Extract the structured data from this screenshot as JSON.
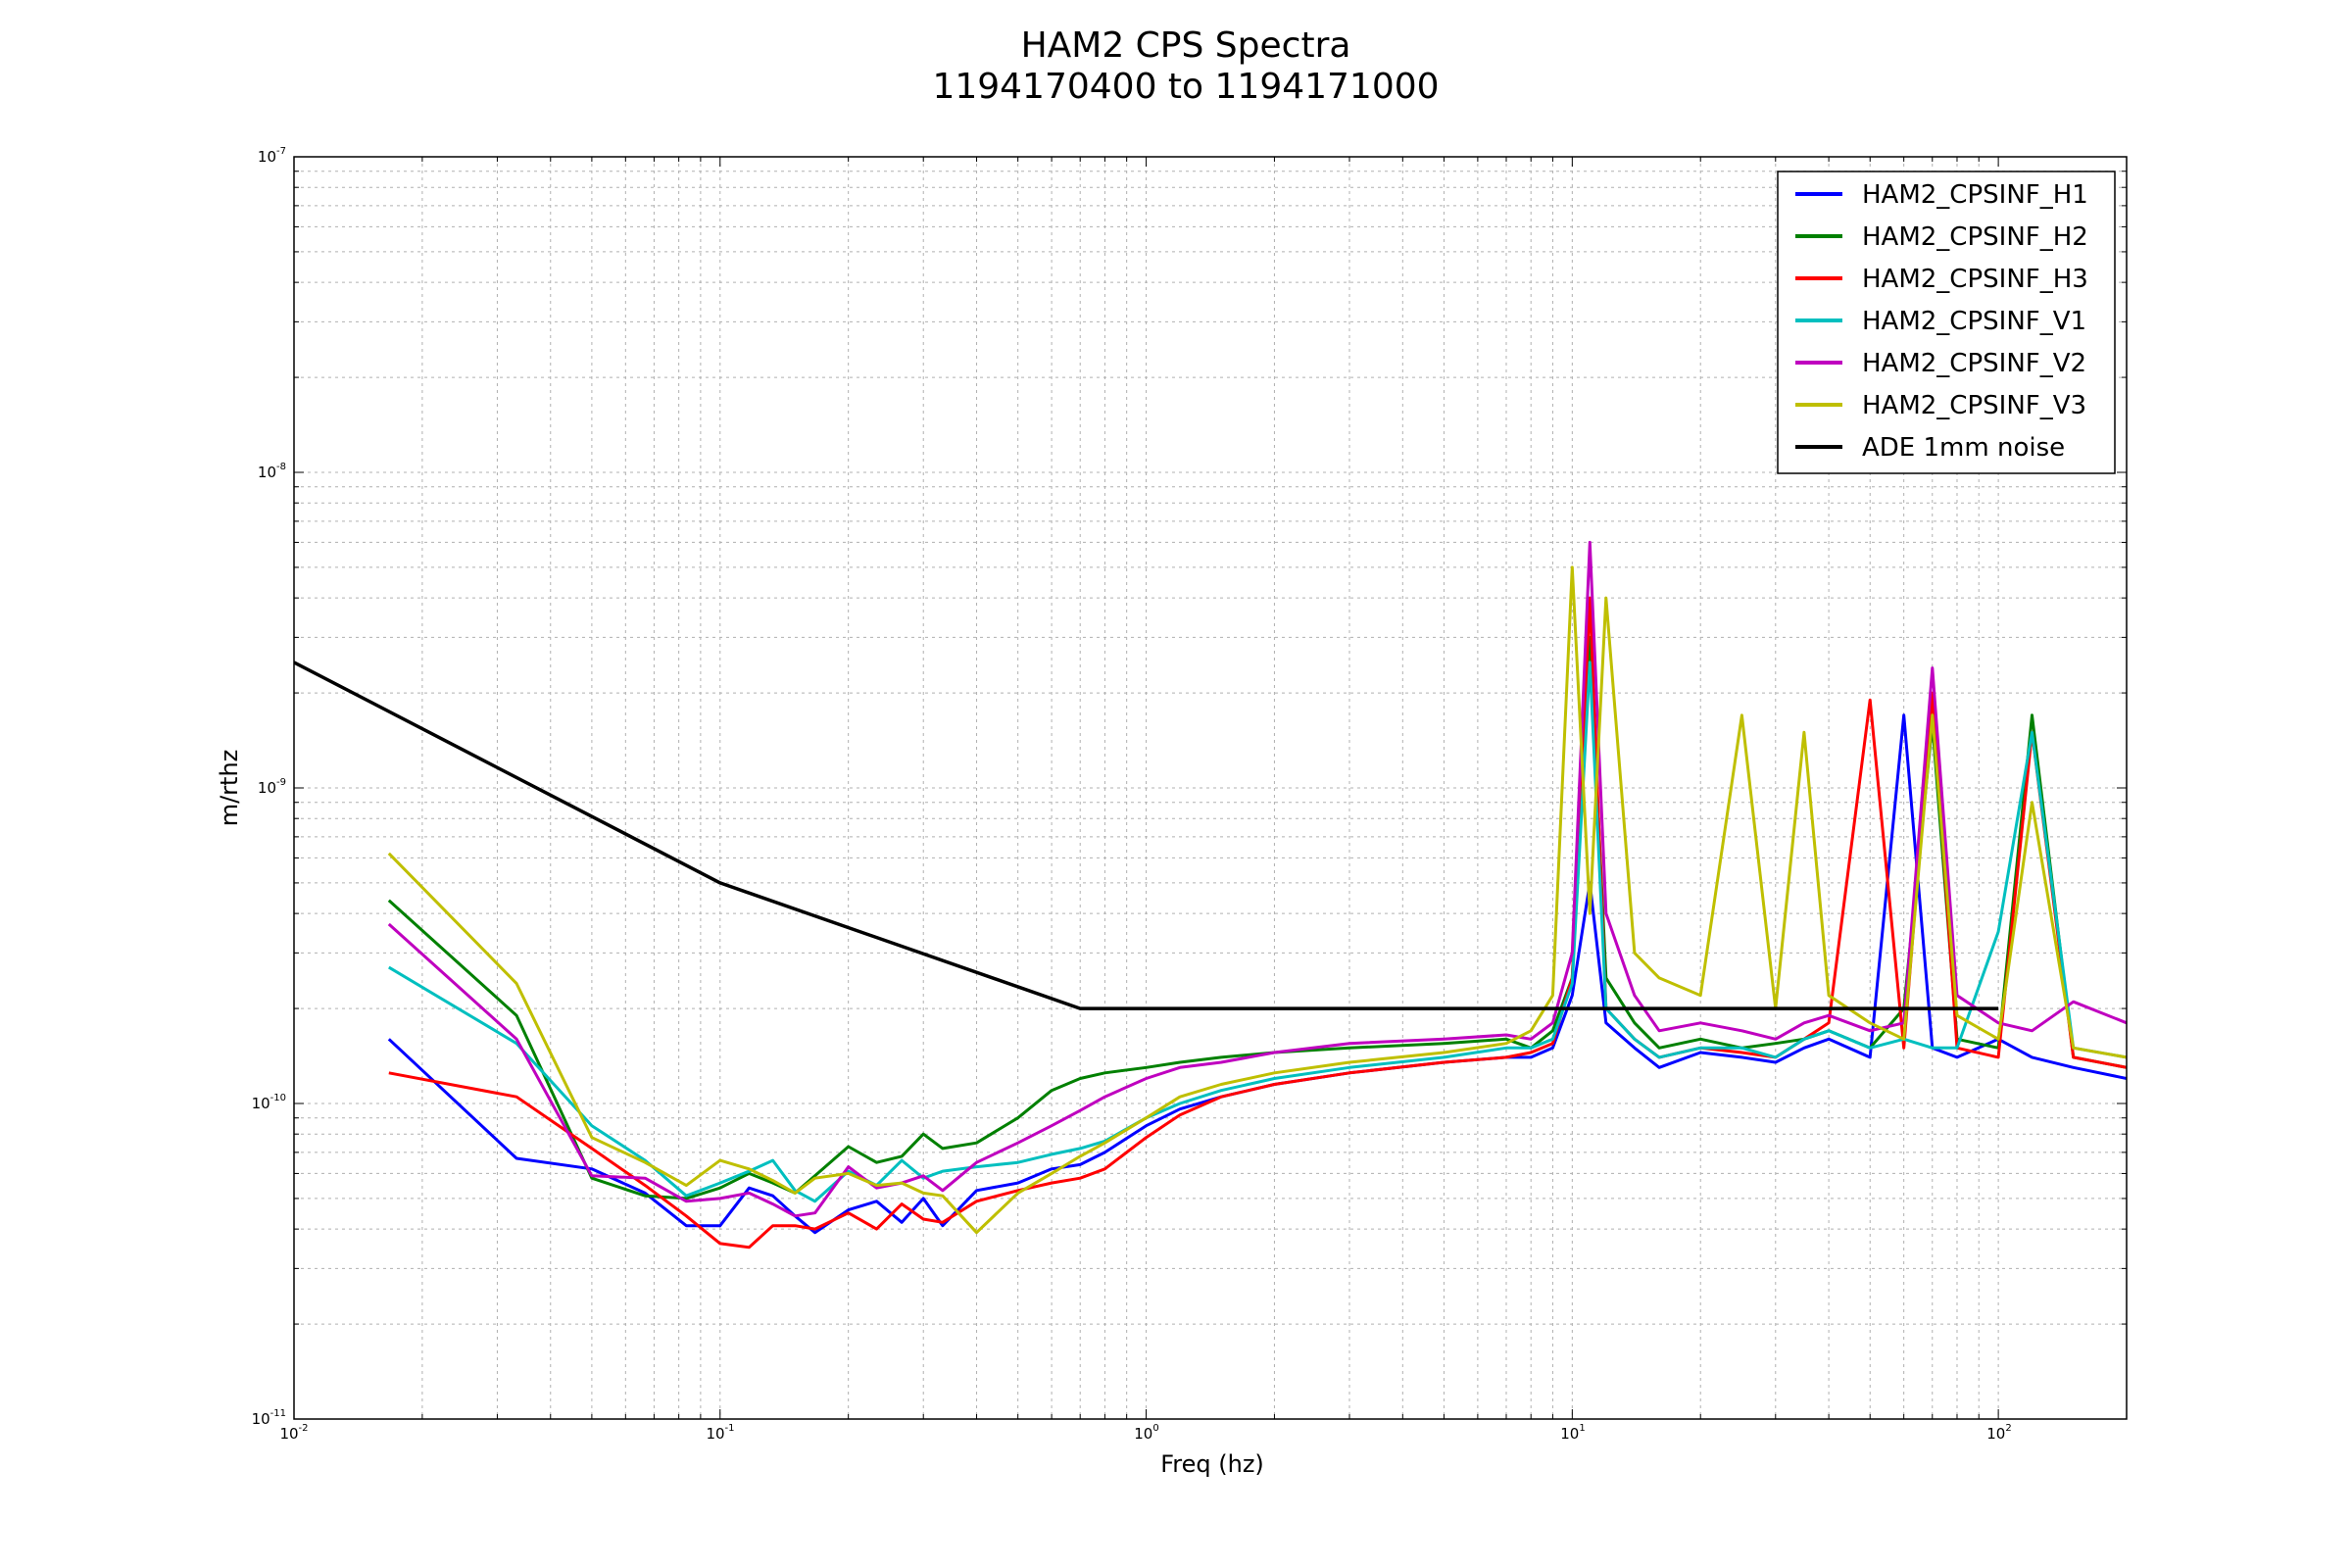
{
  "chart_data": {
    "type": "line",
    "title": [
      "HAM2 CPS Spectra",
      "1194170400 to 1194171000"
    ],
    "xlabel": "Freq (hz)",
    "ylabel": "m/rthz",
    "xscale": "log",
    "yscale": "log",
    "xlim": [
      0.01,
      200
    ],
    "ylim": [
      1e-11,
      1e-07
    ],
    "grid": true,
    "legend_position": "top-right",
    "x_ticks": [
      {
        "base": "10",
        "exp": "-2"
      },
      {
        "base": "10",
        "exp": "-1"
      },
      {
        "base": "10",
        "exp": "0"
      },
      {
        "base": "10",
        "exp": "1"
      },
      {
        "base": "10",
        "exp": "2"
      }
    ],
    "y_ticks": [
      {
        "base": "10",
        "exp": "-11"
      },
      {
        "base": "10",
        "exp": "-10"
      },
      {
        "base": "10",
        "exp": "-9"
      },
      {
        "base": "10",
        "exp": "-8"
      },
      {
        "base": "10",
        "exp": "-7"
      }
    ],
    "series": [
      {
        "name": "HAM2_CPSINF_H1",
        "color": "#0000ff",
        "x": [
          0.0167,
          0.0333,
          0.05,
          0.0667,
          0.0833,
          0.1,
          0.117,
          0.133,
          0.15,
          0.167,
          0.2,
          0.233,
          0.267,
          0.3,
          0.333,
          0.4,
          0.5,
          0.6,
          0.7,
          0.8,
          1,
          1.2,
          1.5,
          2,
          3,
          5,
          7,
          8,
          9,
          10,
          11,
          12,
          14,
          16,
          20,
          25,
          30,
          35,
          40,
          50,
          60,
          70,
          80,
          100,
          120,
          150,
          200
        ],
        "y": [
          1.6e-10,
          6.7e-11,
          6.2e-11,
          5.2e-11,
          4.1e-11,
          4.1e-11,
          5.4e-11,
          5.1e-11,
          4.4e-11,
          3.9e-11,
          4.6e-11,
          4.9e-11,
          4.2e-11,
          5e-11,
          4.1e-11,
          5.3e-11,
          5.6e-11,
          6.2e-11,
          6.4e-11,
          7e-11,
          8.5e-11,
          9.6e-11,
          1.05e-10,
          1.15e-10,
          1.25e-10,
          1.35e-10,
          1.4e-10,
          1.4e-10,
          1.5e-10,
          2.2e-10,
          5e-10,
          1.8e-10,
          1.5e-10,
          1.3e-10,
          1.45e-10,
          1.4e-10,
          1.35e-10,
          1.5e-10,
          1.6e-10,
          1.4e-10,
          1.7e-09,
          1.5e-10,
          1.4e-10,
          1.6e-10,
          1.4e-10,
          1.3e-10,
          1.2e-10
        ]
      },
      {
        "name": "HAM2_CPSINF_H2",
        "color": "#008000",
        "x": [
          0.0167,
          0.0333,
          0.05,
          0.0667,
          0.0833,
          0.1,
          0.117,
          0.133,
          0.15,
          0.167,
          0.2,
          0.233,
          0.267,
          0.3,
          0.333,
          0.4,
          0.5,
          0.6,
          0.7,
          0.8,
          1,
          1.2,
          1.5,
          2,
          3,
          5,
          7,
          8,
          9,
          10,
          11,
          12,
          14,
          16,
          20,
          25,
          30,
          35,
          40,
          50,
          60,
          70,
          80,
          100,
          120,
          150,
          200
        ],
        "y": [
          4.4e-10,
          1.9e-10,
          5.8e-11,
          5.1e-11,
          5e-11,
          5.4e-11,
          6e-11,
          5.6e-11,
          5.2e-11,
          5.9e-11,
          7.3e-11,
          6.5e-11,
          6.8e-11,
          8e-11,
          7.2e-11,
          7.5e-11,
          9e-11,
          1.1e-10,
          1.2e-10,
          1.25e-10,
          1.3e-10,
          1.35e-10,
          1.4e-10,
          1.45e-10,
          1.5e-10,
          1.55e-10,
          1.6e-10,
          1.5e-10,
          1.7e-10,
          2.5e-10,
          3e-09,
          2.5e-10,
          1.8e-10,
          1.5e-10,
          1.6e-10,
          1.5e-10,
          1.55e-10,
          1.6e-10,
          1.7e-10,
          1.5e-10,
          2e-10,
          1.6e-09,
          1.6e-10,
          1.5e-10,
          1.7e-09,
          1.4e-10,
          1.3e-10
        ]
      },
      {
        "name": "HAM2_CPSINF_H3",
        "color": "#ff0000",
        "x": [
          0.0167,
          0.0333,
          0.05,
          0.0667,
          0.0833,
          0.1,
          0.117,
          0.133,
          0.15,
          0.167,
          0.2,
          0.233,
          0.267,
          0.3,
          0.333,
          0.4,
          0.5,
          0.6,
          0.7,
          0.8,
          1,
          1.2,
          1.5,
          2,
          3,
          5,
          7,
          8,
          9,
          10,
          11,
          12,
          14,
          16,
          20,
          25,
          30,
          35,
          40,
          50,
          60,
          70,
          80,
          100,
          120,
          150,
          200
        ],
        "y": [
          1.25e-10,
          1.05e-10,
          7.2e-11,
          5.5e-11,
          4.4e-11,
          3.6e-11,
          3.5e-11,
          4.1e-11,
          4.1e-11,
          4e-11,
          4.5e-11,
          4e-11,
          4.8e-11,
          4.3e-11,
          4.2e-11,
          4.9e-11,
          5.3e-11,
          5.6e-11,
          5.8e-11,
          6.2e-11,
          7.8e-11,
          9.2e-11,
          1.05e-10,
          1.15e-10,
          1.25e-10,
          1.35e-10,
          1.4e-10,
          1.45e-10,
          1.55e-10,
          2.5e-10,
          4e-09,
          2e-10,
          1.6e-10,
          1.4e-10,
          1.5e-10,
          1.45e-10,
          1.4e-10,
          1.6e-10,
          1.8e-10,
          1.9e-09,
          1.5e-10,
          2e-09,
          1.5e-10,
          1.4e-10,
          1.5e-09,
          1.4e-10,
          1.3e-10
        ]
      },
      {
        "name": "HAM2_CPSINF_V1",
        "color": "#00bfbf",
        "x": [
          0.0167,
          0.0333,
          0.05,
          0.0667,
          0.0833,
          0.1,
          0.117,
          0.133,
          0.15,
          0.167,
          0.2,
          0.233,
          0.267,
          0.3,
          0.333,
          0.4,
          0.5,
          0.6,
          0.7,
          0.8,
          1,
          1.2,
          1.5,
          2,
          3,
          5,
          7,
          8,
          9,
          10,
          11,
          12,
          14,
          16,
          20,
          25,
          30,
          35,
          40,
          50,
          60,
          70,
          80,
          100,
          120,
          150,
          200
        ],
        "y": [
          2.7e-10,
          1.55e-10,
          8.5e-11,
          6.6e-11,
          5.1e-11,
          5.6e-11,
          6.1e-11,
          6.6e-11,
          5.3e-11,
          4.9e-11,
          6.1e-11,
          5.5e-11,
          6.6e-11,
          5.8e-11,
          6.1e-11,
          6.3e-11,
          6.5e-11,
          6.9e-11,
          7.2e-11,
          7.6e-11,
          9e-11,
          1e-10,
          1.1e-10,
          1.2e-10,
          1.3e-10,
          1.4e-10,
          1.5e-10,
          1.5e-10,
          1.6e-10,
          2.4e-10,
          2.5e-09,
          2e-10,
          1.6e-10,
          1.4e-10,
          1.5e-10,
          1.5e-10,
          1.4e-10,
          1.6e-10,
          1.7e-10,
          1.5e-10,
          1.6e-10,
          1.5e-10,
          1.5e-10,
          3.5e-10,
          1.5e-09,
          1.5e-10,
          1.4e-10
        ]
      },
      {
        "name": "HAM2_CPSINF_V2",
        "color": "#bf00bf",
        "x": [
          0.0167,
          0.0333,
          0.05,
          0.0667,
          0.0833,
          0.1,
          0.117,
          0.133,
          0.15,
          0.167,
          0.2,
          0.233,
          0.267,
          0.3,
          0.333,
          0.4,
          0.5,
          0.6,
          0.7,
          0.8,
          1,
          1.2,
          1.5,
          2,
          3,
          5,
          7,
          8,
          9,
          10,
          11,
          12,
          14,
          16,
          20,
          25,
          30,
          35,
          40,
          50,
          60,
          70,
          80,
          100,
          120,
          150,
          200
        ],
        "y": [
          3.7e-10,
          1.6e-10,
          5.9e-11,
          5.8e-11,
          4.9e-11,
          5e-11,
          5.2e-11,
          4.8e-11,
          4.4e-11,
          4.5e-11,
          6.3e-11,
          5.4e-11,
          5.6e-11,
          5.9e-11,
          5.3e-11,
          6.5e-11,
          7.5e-11,
          8.5e-11,
          9.5e-11,
          1.05e-10,
          1.2e-10,
          1.3e-10,
          1.35e-10,
          1.45e-10,
          1.55e-10,
          1.6e-10,
          1.65e-10,
          1.6e-10,
          1.8e-10,
          3e-10,
          6e-09,
          4e-10,
          2.2e-10,
          1.7e-10,
          1.8e-10,
          1.7e-10,
          1.6e-10,
          1.8e-10,
          1.9e-10,
          1.7e-10,
          1.8e-10,
          2.4e-09,
          2.2e-10,
          1.8e-10,
          1.7e-10,
          2.1e-10,
          1.8e-10
        ]
      },
      {
        "name": "HAM2_CPSINF_V3",
        "color": "#bfbf00",
        "x": [
          0.0167,
          0.0333,
          0.05,
          0.0667,
          0.0833,
          0.1,
          0.117,
          0.133,
          0.15,
          0.167,
          0.2,
          0.233,
          0.267,
          0.3,
          0.333,
          0.4,
          0.5,
          0.6,
          0.7,
          0.8,
          1,
          1.2,
          1.5,
          2,
          3,
          5,
          7,
          8,
          9,
          10,
          11,
          12,
          14,
          16,
          20,
          25,
          30,
          35,
          40,
          50,
          60,
          70,
          80,
          100,
          120,
          150,
          200
        ],
        "y": [
          6.2e-10,
          2.4e-10,
          7.8e-11,
          6.5e-11,
          5.5e-11,
          6.6e-11,
          6.2e-11,
          5.7e-11,
          5.2e-11,
          5.8e-11,
          6e-11,
          5.5e-11,
          5.6e-11,
          5.2e-11,
          5.1e-11,
          3.9e-11,
          5.2e-11,
          6e-11,
          6.8e-11,
          7.5e-11,
          9e-11,
          1.05e-10,
          1.15e-10,
          1.25e-10,
          1.35e-10,
          1.45e-10,
          1.55e-10,
          1.7e-10,
          2.2e-10,
          5e-09,
          4e-10,
          4e-09,
          3e-10,
          2.5e-10,
          2.2e-10,
          1.7e-09,
          2e-10,
          1.5e-09,
          2.2e-10,
          1.8e-10,
          1.6e-10,
          1.7e-09,
          1.9e-10,
          1.6e-10,
          9e-10,
          1.5e-10,
          1.4e-10
        ]
      },
      {
        "name": "ADE 1mm noise",
        "color": "#000000",
        "x": [
          0.01,
          0.1,
          0.7,
          100
        ],
        "y": [
          2.5e-09,
          5e-10,
          2e-10,
          2e-10
        ]
      }
    ]
  }
}
